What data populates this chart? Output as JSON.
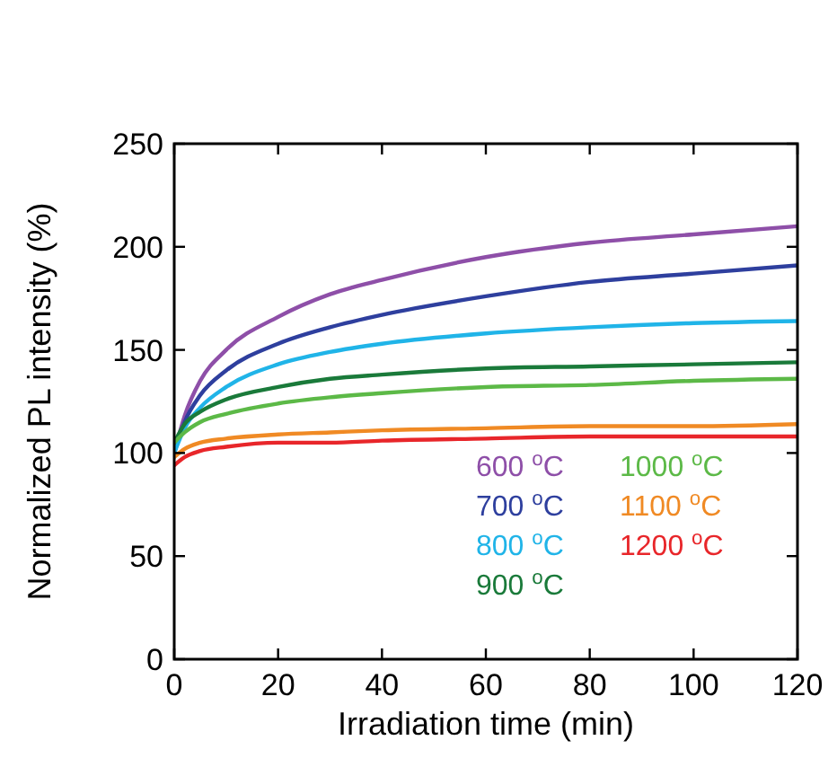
{
  "chart_data": {
    "type": "line",
    "xlabel": "Irradiation time (min)",
    "ylabel": "Normalized PL intensity (%)",
    "xlim": [
      0,
      120
    ],
    "xticks": [
      0,
      20,
      40,
      60,
      80,
      100,
      120
    ],
    "ylim": [
      0,
      250
    ],
    "yticks": [
      0,
      50,
      100,
      150,
      200,
      250
    ],
    "legend": "bottom right",
    "marker": "none",
    "line_style": "solid",
    "grid": false,
    "x": [
      0,
      2,
      5,
      10,
      20,
      30,
      40,
      60,
      80,
      100,
      120
    ],
    "series": [
      {
        "name": "600 $^{o}$C",
        "color": "#8e4fa8",
        "values": [
          100,
          118,
          135,
          150,
          166,
          177,
          184,
          195,
          202,
          206,
          210
        ]
      },
      {
        "name": "700 $^{o}$C",
        "color": "#2e3f9e",
        "values": [
          100,
          115,
          128,
          140,
          153,
          161,
          167,
          176,
          183,
          187,
          191
        ]
      },
      {
        "name": "800 $^{o}$C",
        "color": "#20b4e8",
        "values": [
          100,
          112,
          122,
          132,
          143,
          149,
          153,
          158,
          161,
          163,
          164
        ]
      },
      {
        "name": "900 $^{o}$C",
        "color": "#1a7a3a",
        "values": [
          105,
          114,
          120,
          126,
          132,
          136,
          138,
          141,
          142,
          143,
          144
        ]
      },
      {
        "name": "1000 $^{o}$C",
        "color": "#5cb947",
        "values": [
          105,
          110,
          115,
          119,
          124,
          127,
          129,
          132,
          133,
          135,
          136
        ]
      },
      {
        "name": "1100 $^{o}$C",
        "color": "#f08a24",
        "values": [
          98,
          102,
          105,
          107,
          109,
          110,
          111,
          112,
          113,
          113,
          114
        ]
      },
      {
        "name": "1200 $^{o}$C",
        "color": "#e8262a",
        "values": [
          94,
          98,
          101,
          103,
          105,
          105,
          106,
          107,
          108,
          108,
          108
        ]
      }
    ]
  }
}
